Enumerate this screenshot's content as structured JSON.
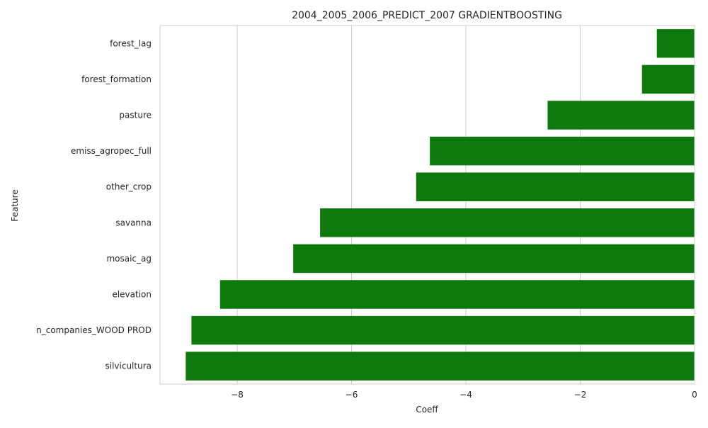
{
  "chart_data": {
    "type": "bar",
    "orientation": "horizontal",
    "title": "2004_2005_2006_PREDICT_2007 GRADIENTBOOSTING",
    "xlabel": "Coeff",
    "ylabel": "Feature",
    "categories": [
      "forest_lag",
      "forest_formation",
      "pasture",
      "emiss_agropec_full",
      "other_crop",
      "savanna",
      "mosaic_ag",
      "elevation",
      "n_companies_WOOD PROD",
      "silvicultura"
    ],
    "values": [
      -0.66,
      -0.92,
      -2.57,
      -4.63,
      -4.87,
      -6.55,
      -7.02,
      -8.3,
      -8.8,
      -8.9
    ],
    "xlim": [
      -9.35,
      0
    ],
    "xticks": [
      -8,
      -6,
      -4,
      -2,
      0
    ],
    "xtick_labels": [
      "−8",
      "−6",
      "−4",
      "−2",
      "0"
    ],
    "grid": "vertical",
    "bar_color": "#0e7a0e",
    "legend": "none"
  }
}
